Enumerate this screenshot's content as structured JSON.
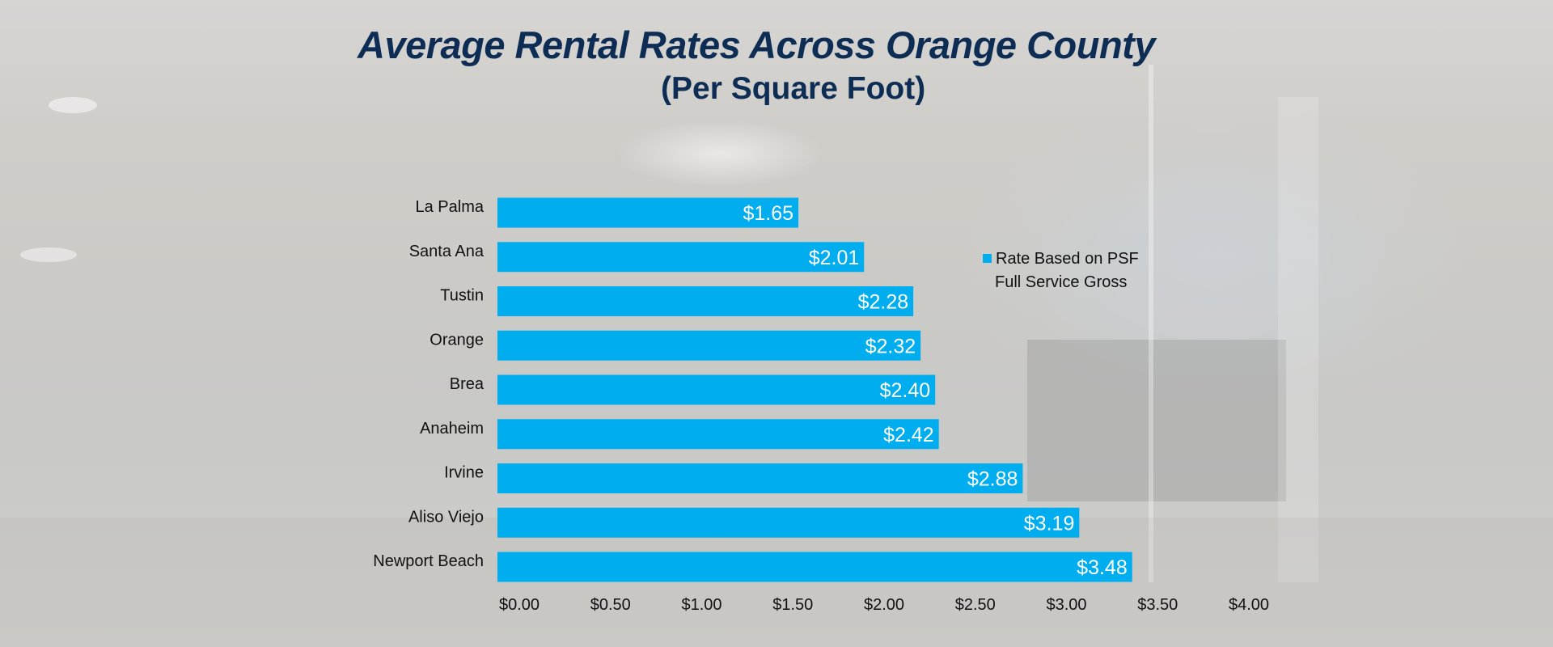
{
  "title": "Average Rental Rates Across Orange County",
  "subtitle": "(Per Square Foot)",
  "chart_data": {
    "type": "bar",
    "orientation": "horizontal",
    "title": "Average Rental Rates Across Orange County",
    "subtitle": "(Per Square Foot)",
    "categories": [
      "La Palma",
      "Santa Ana",
      "Tustin",
      "Orange",
      "Brea",
      "Anaheim",
      "Irvine",
      "Aliso Viejo",
      "Newport Beach"
    ],
    "values": [
      1.65,
      2.01,
      2.28,
      2.32,
      2.4,
      2.42,
      2.88,
      3.19,
      3.48
    ],
    "value_labels": [
      "$1.65",
      "$2.01",
      "$2.28",
      "$2.32",
      "$2.40",
      "$2.42",
      "$2.88",
      "$3.19",
      "$3.48"
    ],
    "series": [
      {
        "name": "Rate Based on PSF Full Service Gross",
        "values": [
          1.65,
          2.01,
          2.28,
          2.32,
          2.4,
          2.42,
          2.88,
          3.19,
          3.48
        ]
      }
    ],
    "xlim": [
      0,
      4
    ],
    "x_ticks": [
      0,
      0.5,
      1,
      1.5,
      2,
      2.5,
      3,
      3.5,
      4
    ],
    "x_tick_labels": [
      "$0.00",
      "$0.50",
      "$1.00",
      "$1.50",
      "$2.00",
      "$2.50",
      "$3.00",
      "$3.50",
      "$4.00"
    ],
    "xlabel": "",
    "ylabel": "",
    "grid": false,
    "bar_color": "#00aeef",
    "legend": {
      "position": "right",
      "line1": "Rate Based on PSF",
      "line2": "Full Service Gross"
    }
  },
  "colors": {
    "title": "#0e2d55",
    "bar": "#00aeef",
    "text": "#111111",
    "value_text": "#ffffff"
  }
}
